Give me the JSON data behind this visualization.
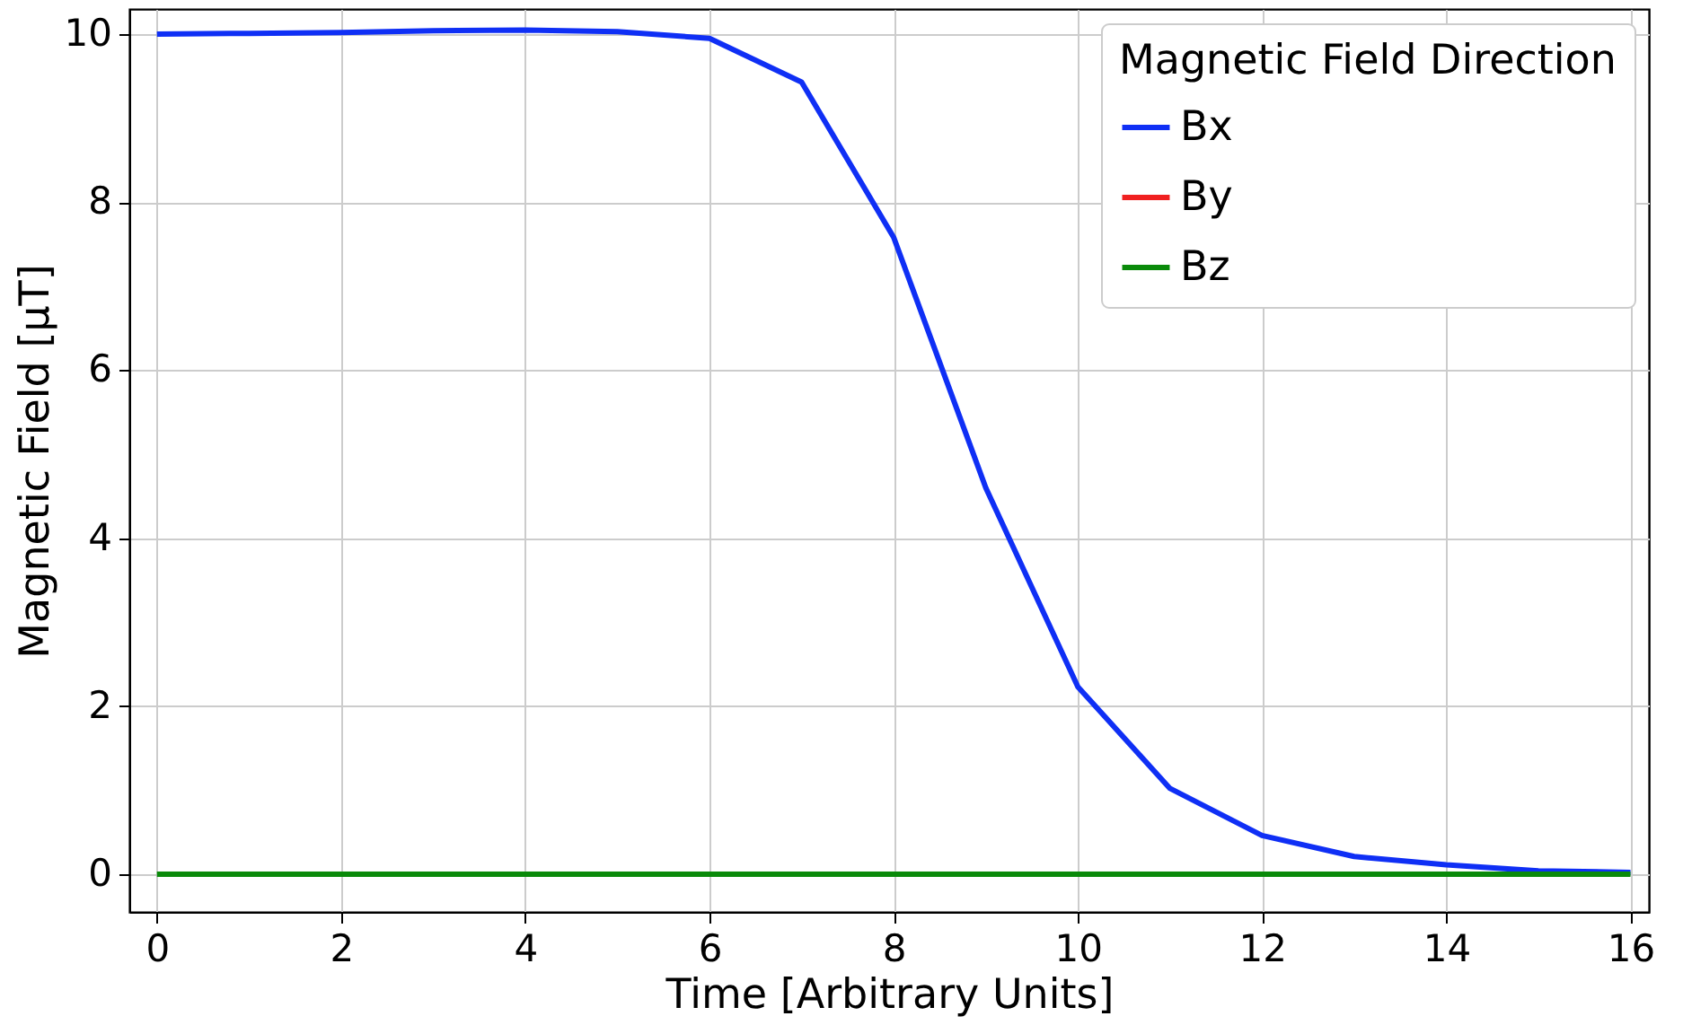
{
  "chart_data": {
    "type": "line",
    "xlabel": "Time [Arbitrary Units]",
    "ylabel": "Magnetic Field [μT]",
    "legend_title": "Magnetic Field Direction",
    "x": [
      0,
      1,
      2,
      3,
      4,
      5,
      6,
      7,
      8,
      9,
      10,
      11,
      12,
      13,
      14,
      15,
      16
    ],
    "series": [
      {
        "name": "Bx",
        "color": "#0f2ff5",
        "values": [
          10.0,
          10.01,
          10.02,
          10.04,
          10.05,
          10.03,
          9.95,
          9.43,
          7.58,
          4.6,
          2.23,
          1.02,
          0.46,
          0.21,
          0.11,
          0.04,
          0.02
        ]
      },
      {
        "name": "By",
        "color": "#f02020",
        "values": [
          null,
          null,
          null,
          null,
          null,
          null,
          null,
          null,
          null,
          null,
          null,
          null,
          null,
          null,
          null,
          null,
          null
        ]
      },
      {
        "name": "Bz",
        "color": "#0a8a0a",
        "values": [
          0,
          0,
          0,
          0,
          0,
          0,
          0,
          0,
          0,
          0,
          0,
          0,
          0,
          0,
          0,
          0,
          0
        ]
      }
    ],
    "xlim": [
      -0.3,
      16.2
    ],
    "ylim": [
      -0.45,
      10.3
    ],
    "xticks": [
      0,
      2,
      4,
      6,
      8,
      10,
      12,
      14,
      16
    ],
    "yticks": [
      0,
      2,
      4,
      6,
      8,
      10
    ],
    "grid": true,
    "legend": "top right",
    "line_style": "solid",
    "marker": "none"
  }
}
